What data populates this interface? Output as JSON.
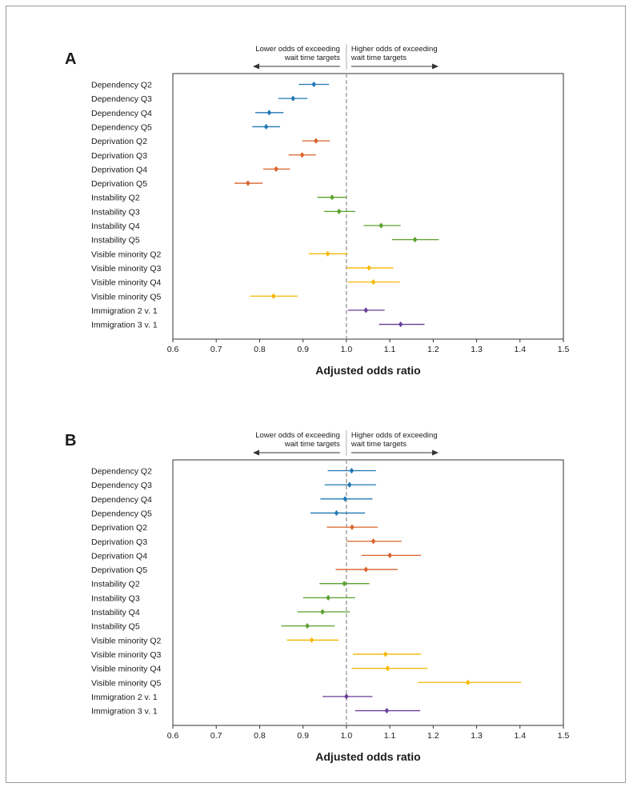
{
  "figure": {
    "accent_colors": {
      "dependency": "#1f78b4",
      "deprivation": "#d9622b",
      "instability": "#5aa02c",
      "visible_minority": "#f5b800",
      "immigration": "#6a3d9a",
      "reference_line": "#a8a8a8"
    }
  },
  "chart_data": [
    {
      "panel": "A",
      "type": "forest",
      "xlabel": "Adjusted odds ratio",
      "xlim": [
        0.6,
        1.5
      ],
      "xticks": [
        "0.6",
        "0.7",
        "0.8",
        "0.9",
        "1.0",
        "1.1",
        "1.2",
        "1.3",
        "1.4",
        "1.5"
      ],
      "reference": 1.0,
      "annotation_left": [
        "Lower odds of exceeding",
        "wait time targets"
      ],
      "annotation_right": [
        "Higher odds of exceeding",
        "wait time targets"
      ],
      "rows": [
        {
          "label": "Dependency Q2",
          "group": "dependency",
          "or": 0.925,
          "lo": 0.89,
          "hi": 0.96
        },
        {
          "label": "Dependency Q3",
          "group": "dependency",
          "or": 0.877,
          "lo": 0.843,
          "hi": 0.91
        },
        {
          "label": "Dependency Q4",
          "group": "dependency",
          "or": 0.822,
          "lo": 0.79,
          "hi": 0.855
        },
        {
          "label": "Dependency Q5",
          "group": "dependency",
          "or": 0.815,
          "lo": 0.783,
          "hi": 0.847
        },
        {
          "label": "Deprivation Q2",
          "group": "deprivation",
          "or": 0.93,
          "lo": 0.898,
          "hi": 0.962
        },
        {
          "label": "Deprivation Q3",
          "group": "deprivation",
          "or": 0.898,
          "lo": 0.867,
          "hi": 0.93
        },
        {
          "label": "Deprivation Q4",
          "group": "deprivation",
          "or": 0.838,
          "lo": 0.808,
          "hi": 0.87
        },
        {
          "label": "Deprivation Q5",
          "group": "deprivation",
          "or": 0.773,
          "lo": 0.742,
          "hi": 0.807
        },
        {
          "label": "Instability Q2",
          "group": "instability",
          "or": 0.967,
          "lo": 0.933,
          "hi": 1.0
        },
        {
          "label": "Instability Q3",
          "group": "instability",
          "or": 0.983,
          "lo": 0.948,
          "hi": 1.02
        },
        {
          "label": "Instability Q4",
          "group": "instability",
          "or": 1.08,
          "lo": 1.04,
          "hi": 1.125
        },
        {
          "label": "Instability Q5",
          "group": "instability",
          "or": 1.158,
          "lo": 1.105,
          "hi": 1.213
        },
        {
          "label": "Visible minority Q2",
          "group": "visible_minority",
          "or": 0.957,
          "lo": 0.913,
          "hi": 1.003
        },
        {
          "label": "Visible minority Q3",
          "group": "visible_minority",
          "or": 1.052,
          "lo": 1.0,
          "hi": 1.108
        },
        {
          "label": "Visible minority Q4",
          "group": "visible_minority",
          "or": 1.062,
          "lo": 1.003,
          "hi": 1.123
        },
        {
          "label": "Visible minority Q5",
          "group": "visible_minority",
          "or": 0.832,
          "lo": 0.778,
          "hi": 0.888
        },
        {
          "label": "Immigration 2 v. 1",
          "group": "immigration",
          "or": 1.045,
          "lo": 1.003,
          "hi": 1.088
        },
        {
          "label": "Immigration 3 v. 1",
          "group": "immigration",
          "or": 1.125,
          "lo": 1.075,
          "hi": 1.18
        }
      ]
    },
    {
      "panel": "B",
      "type": "forest",
      "xlabel": "Adjusted odds ratio",
      "xlim": [
        0.6,
        1.5
      ],
      "xticks": [
        "0.6",
        "0.7",
        "0.8",
        "0.9",
        "1.0",
        "1.1",
        "1.2",
        "1.3",
        "1.4",
        "1.5"
      ],
      "reference": 1.0,
      "annotation_left": [
        "Lower odds of exceeding",
        "wait time targets"
      ],
      "annotation_right": [
        "Higher odds of exceeding",
        "wait time targets"
      ],
      "rows": [
        {
          "label": "Dependency Q2",
          "group": "dependency",
          "or": 1.012,
          "lo": 0.957,
          "hi": 1.068
        },
        {
          "label": "Dependency Q3",
          "group": "dependency",
          "or": 1.007,
          "lo": 0.95,
          "hi": 1.068
        },
        {
          "label": "Dependency Q4",
          "group": "dependency",
          "or": 0.997,
          "lo": 0.94,
          "hi": 1.06
        },
        {
          "label": "Dependency Q5",
          "group": "dependency",
          "or": 0.977,
          "lo": 0.917,
          "hi": 1.043
        },
        {
          "label": "Deprivation Q2",
          "group": "deprivation",
          "or": 1.013,
          "lo": 0.955,
          "hi": 1.072
        },
        {
          "label": "Deprivation Q3",
          "group": "deprivation",
          "or": 1.062,
          "lo": 1.0,
          "hi": 1.127
        },
        {
          "label": "Deprivation Q4",
          "group": "deprivation",
          "or": 1.1,
          "lo": 1.035,
          "hi": 1.172
        },
        {
          "label": "Deprivation Q5",
          "group": "deprivation",
          "or": 1.045,
          "lo": 0.975,
          "hi": 1.118
        },
        {
          "label": "Instability Q2",
          "group": "instability",
          "or": 0.995,
          "lo": 0.938,
          "hi": 1.053
        },
        {
          "label": "Instability Q3",
          "group": "instability",
          "or": 0.958,
          "lo": 0.9,
          "hi": 1.02
        },
        {
          "label": "Instability Q4",
          "group": "instability",
          "or": 0.945,
          "lo": 0.887,
          "hi": 1.008
        },
        {
          "label": "Instability Q5",
          "group": "instability",
          "or": 0.91,
          "lo": 0.85,
          "hi": 0.973
        },
        {
          "label": "Visible minority Q2",
          "group": "visible_minority",
          "or": 0.92,
          "lo": 0.863,
          "hi": 0.982
        },
        {
          "label": "Visible minority Q3",
          "group": "visible_minority",
          "or": 1.09,
          "lo": 1.015,
          "hi": 1.172
        },
        {
          "label": "Visible minority Q4",
          "group": "visible_minority",
          "or": 1.095,
          "lo": 1.012,
          "hi": 1.187
        },
        {
          "label": "Visible minority Q5",
          "group": "visible_minority",
          "or": 1.28,
          "lo": 1.165,
          "hi": 1.403
        },
        {
          "label": "Immigration 2 v. 1",
          "group": "immigration",
          "or": 1.0,
          "lo": 0.945,
          "hi": 1.06
        },
        {
          "label": "Immigration 3 v. 1",
          "group": "immigration",
          "or": 1.093,
          "lo": 1.02,
          "hi": 1.17
        }
      ]
    }
  ]
}
